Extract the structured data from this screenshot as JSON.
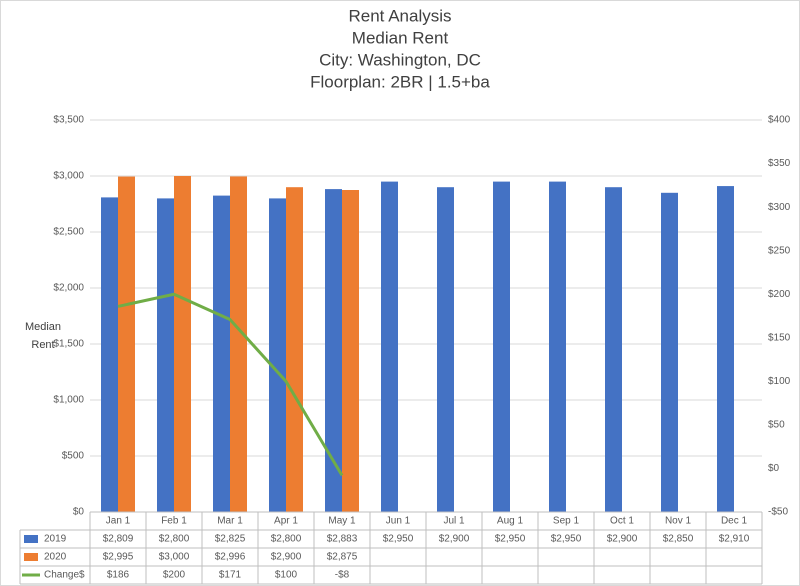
{
  "chart_data": {
    "type": "bar",
    "title": [
      "Rent Analysis",
      "Median Rent",
      "City: Washington, DC",
      "Floorplan:  2BR | 1.5+ba"
    ],
    "y_label": "Median Rent",
    "categories": [
      "Jan 1",
      "Feb 1",
      "Mar 1",
      "Apr 1",
      "May 1",
      "Jun 1",
      "Jul 1",
      "Aug 1",
      "Sep 1",
      "Oct 1",
      "Nov 1",
      "Dec 1"
    ],
    "series": [
      {
        "name": "2019",
        "color": "#4472c4",
        "type": "bar",
        "values": [
          2809,
          2800,
          2825,
          2800,
          2883,
          2950,
          2900,
          2950,
          2950,
          2900,
          2850,
          2910
        ],
        "value_labels": [
          "$2,809",
          "$2,800",
          "$2,825",
          "$2,800",
          "$2,883",
          "$2,950",
          "$2,900",
          "$2,950",
          "$2,950",
          "$2,900",
          "$2,850",
          "$2,910"
        ]
      },
      {
        "name": "2020",
        "color": "#ed7d31",
        "type": "bar",
        "values": [
          2995,
          3000,
          2996,
          2900,
          2875,
          null,
          null,
          null,
          null,
          null,
          null,
          null
        ],
        "value_labels": [
          "$2,995",
          "$3,000",
          "$2,996",
          "$2,900",
          "$2,875",
          null,
          null,
          null,
          null,
          null,
          null,
          null
        ]
      },
      {
        "name": "Change$",
        "color": "#70ad47",
        "type": "line",
        "axis": "y2",
        "values": [
          186,
          200,
          171,
          100,
          -8,
          null,
          null,
          null,
          null,
          null,
          null,
          null
        ],
        "value_labels": [
          "$186",
          "$200",
          "$171",
          "$100",
          "-$8",
          null,
          null,
          null,
          null,
          null,
          null,
          null
        ]
      }
    ],
    "ylim": [
      0,
      3500
    ],
    "yticks": [
      {
        "value": 0,
        "label": "$0"
      },
      {
        "value": 500,
        "label": "$500"
      },
      {
        "value": 1000,
        "label": "$1,000"
      },
      {
        "value": 1500,
        "label": "$1,500"
      },
      {
        "value": 2000,
        "label": "$2,000"
      },
      {
        "value": 2500,
        "label": "$2,500"
      },
      {
        "value": 3000,
        "label": "$3,000"
      },
      {
        "value": 3500,
        "label": "$3,500"
      }
    ],
    "y2lim": [
      -50,
      400
    ],
    "y2ticks": [
      {
        "value": -50,
        "label": "-$50"
      },
      {
        "value": 0,
        "label": "$0"
      },
      {
        "value": 50,
        "label": "$50"
      },
      {
        "value": 100,
        "label": "$100"
      },
      {
        "value": 150,
        "label": "$150"
      },
      {
        "value": 200,
        "label": "$200"
      },
      {
        "value": 250,
        "label": "$250"
      },
      {
        "value": 300,
        "label": "$300"
      },
      {
        "value": 350,
        "label": "$350"
      },
      {
        "value": 400,
        "label": "$400"
      }
    ],
    "grid": true
  }
}
